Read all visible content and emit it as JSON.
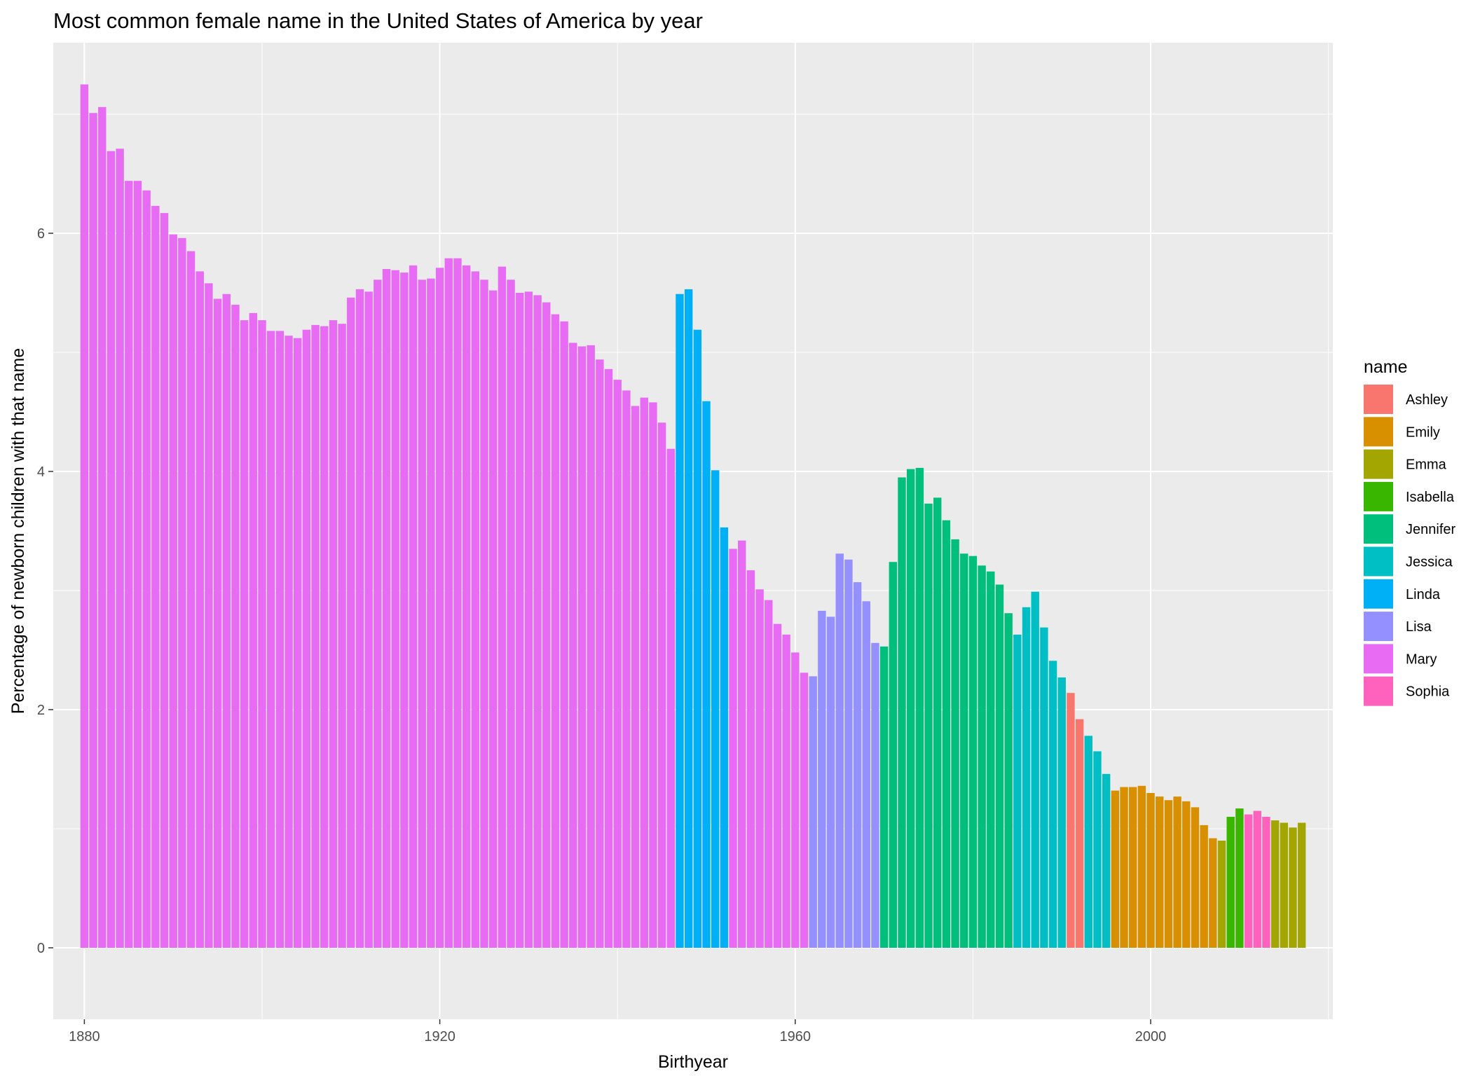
{
  "chart_data": {
    "type": "bar",
    "title": "Most common female name in the United States of America by year",
    "xlabel": "Birthyear",
    "ylabel": "Percentage of newborn children with that name",
    "xlim": [
      1876.5,
      2020.5
    ],
    "ylim": [
      -0.6,
      7.6
    ],
    "x_ticks": [
      1880,
      1920,
      1960,
      2000
    ],
    "y_ticks": [
      0,
      2,
      4,
      6
    ],
    "x_minor_ticks": [
      1900,
      1940,
      1980,
      2020
    ],
    "y_minor_ticks": [
      1,
      3,
      5,
      7
    ],
    "grid": true,
    "legend": {
      "title": "name",
      "position": "right"
    },
    "colors": {
      "Ashley": "#F8766D",
      "Emily": "#D89000",
      "Emma": "#A3A500",
      "Isabella": "#39B600",
      "Jennifer": "#00BF7D",
      "Jessica": "#00BFC4",
      "Linda": "#00B0F6",
      "Lisa": "#9590FF",
      "Mary": "#E76BF3",
      "Sophia": "#FF62BC"
    },
    "series_order": [
      "Ashley",
      "Emily",
      "Emma",
      "Isabella",
      "Jennifer",
      "Jessica",
      "Linda",
      "Lisa",
      "Mary",
      "Sophia"
    ],
    "panel_background": "#EBEBEB",
    "grid_color": "#FFFFFF",
    "bars": [
      {
        "x": 1880,
        "y": 7.25,
        "name": "Mary"
      },
      {
        "x": 1881,
        "y": 7.01,
        "name": "Mary"
      },
      {
        "x": 1882,
        "y": 7.06,
        "name": "Mary"
      },
      {
        "x": 1883,
        "y": 6.69,
        "name": "Mary"
      },
      {
        "x": 1884,
        "y": 6.71,
        "name": "Mary"
      },
      {
        "x": 1885,
        "y": 6.44,
        "name": "Mary"
      },
      {
        "x": 1886,
        "y": 6.44,
        "name": "Mary"
      },
      {
        "x": 1887,
        "y": 6.36,
        "name": "Mary"
      },
      {
        "x": 1888,
        "y": 6.23,
        "name": "Mary"
      },
      {
        "x": 1889,
        "y": 6.17,
        "name": "Mary"
      },
      {
        "x": 1890,
        "y": 5.99,
        "name": "Mary"
      },
      {
        "x": 1891,
        "y": 5.96,
        "name": "Mary"
      },
      {
        "x": 1892,
        "y": 5.85,
        "name": "Mary"
      },
      {
        "x": 1893,
        "y": 5.68,
        "name": "Mary"
      },
      {
        "x": 1894,
        "y": 5.58,
        "name": "Mary"
      },
      {
        "x": 1895,
        "y": 5.45,
        "name": "Mary"
      },
      {
        "x": 1896,
        "y": 5.49,
        "name": "Mary"
      },
      {
        "x": 1897,
        "y": 5.4,
        "name": "Mary"
      },
      {
        "x": 1898,
        "y": 5.27,
        "name": "Mary"
      },
      {
        "x": 1899,
        "y": 5.33,
        "name": "Mary"
      },
      {
        "x": 1900,
        "y": 5.27,
        "name": "Mary"
      },
      {
        "x": 1901,
        "y": 5.18,
        "name": "Mary"
      },
      {
        "x": 1902,
        "y": 5.18,
        "name": "Mary"
      },
      {
        "x": 1903,
        "y": 5.14,
        "name": "Mary"
      },
      {
        "x": 1904,
        "y": 5.12,
        "name": "Mary"
      },
      {
        "x": 1905,
        "y": 5.19,
        "name": "Mary"
      },
      {
        "x": 1906,
        "y": 5.23,
        "name": "Mary"
      },
      {
        "x": 1907,
        "y": 5.22,
        "name": "Mary"
      },
      {
        "x": 1908,
        "y": 5.27,
        "name": "Mary"
      },
      {
        "x": 1909,
        "y": 5.24,
        "name": "Mary"
      },
      {
        "x": 1910,
        "y": 5.46,
        "name": "Mary"
      },
      {
        "x": 1911,
        "y": 5.53,
        "name": "Mary"
      },
      {
        "x": 1912,
        "y": 5.51,
        "name": "Mary"
      },
      {
        "x": 1913,
        "y": 5.61,
        "name": "Mary"
      },
      {
        "x": 1914,
        "y": 5.7,
        "name": "Mary"
      },
      {
        "x": 1915,
        "y": 5.69,
        "name": "Mary"
      },
      {
        "x": 1916,
        "y": 5.67,
        "name": "Mary"
      },
      {
        "x": 1917,
        "y": 5.73,
        "name": "Mary"
      },
      {
        "x": 1918,
        "y": 5.61,
        "name": "Mary"
      },
      {
        "x": 1919,
        "y": 5.62,
        "name": "Mary"
      },
      {
        "x": 1920,
        "y": 5.71,
        "name": "Mary"
      },
      {
        "x": 1921,
        "y": 5.79,
        "name": "Mary"
      },
      {
        "x": 1922,
        "y": 5.79,
        "name": "Mary"
      },
      {
        "x": 1923,
        "y": 5.73,
        "name": "Mary"
      },
      {
        "x": 1924,
        "y": 5.68,
        "name": "Mary"
      },
      {
        "x": 1925,
        "y": 5.61,
        "name": "Mary"
      },
      {
        "x": 1926,
        "y": 5.52,
        "name": "Mary"
      },
      {
        "x": 1927,
        "y": 5.72,
        "name": "Mary"
      },
      {
        "x": 1928,
        "y": 5.61,
        "name": "Mary"
      },
      {
        "x": 1929,
        "y": 5.5,
        "name": "Mary"
      },
      {
        "x": 1930,
        "y": 5.51,
        "name": "Mary"
      },
      {
        "x": 1931,
        "y": 5.48,
        "name": "Mary"
      },
      {
        "x": 1932,
        "y": 5.42,
        "name": "Mary"
      },
      {
        "x": 1933,
        "y": 5.32,
        "name": "Mary"
      },
      {
        "x": 1934,
        "y": 5.26,
        "name": "Mary"
      },
      {
        "x": 1935,
        "y": 5.08,
        "name": "Mary"
      },
      {
        "x": 1936,
        "y": 5.05,
        "name": "Mary"
      },
      {
        "x": 1937,
        "y": 5.06,
        "name": "Mary"
      },
      {
        "x": 1938,
        "y": 4.94,
        "name": "Mary"
      },
      {
        "x": 1939,
        "y": 4.86,
        "name": "Mary"
      },
      {
        "x": 1940,
        "y": 4.77,
        "name": "Mary"
      },
      {
        "x": 1941,
        "y": 4.68,
        "name": "Mary"
      },
      {
        "x": 1942,
        "y": 4.55,
        "name": "Mary"
      },
      {
        "x": 1943,
        "y": 4.62,
        "name": "Mary"
      },
      {
        "x": 1944,
        "y": 4.58,
        "name": "Mary"
      },
      {
        "x": 1945,
        "y": 4.41,
        "name": "Mary"
      },
      {
        "x": 1946,
        "y": 4.19,
        "name": "Mary"
      },
      {
        "x": 1947,
        "y": 5.49,
        "name": "Linda"
      },
      {
        "x": 1948,
        "y": 5.53,
        "name": "Linda"
      },
      {
        "x": 1949,
        "y": 5.19,
        "name": "Linda"
      },
      {
        "x": 1950,
        "y": 4.59,
        "name": "Linda"
      },
      {
        "x": 1951,
        "y": 4.01,
        "name": "Linda"
      },
      {
        "x": 1952,
        "y": 3.53,
        "name": "Linda"
      },
      {
        "x": 1953,
        "y": 3.35,
        "name": "Mary"
      },
      {
        "x": 1954,
        "y": 3.42,
        "name": "Mary"
      },
      {
        "x": 1955,
        "y": 3.17,
        "name": "Mary"
      },
      {
        "x": 1956,
        "y": 3.01,
        "name": "Mary"
      },
      {
        "x": 1957,
        "y": 2.92,
        "name": "Mary"
      },
      {
        "x": 1958,
        "y": 2.72,
        "name": "Mary"
      },
      {
        "x": 1959,
        "y": 2.63,
        "name": "Mary"
      },
      {
        "x": 1960,
        "y": 2.48,
        "name": "Mary"
      },
      {
        "x": 1961,
        "y": 2.31,
        "name": "Mary"
      },
      {
        "x": 1962,
        "y": 2.28,
        "name": "Lisa"
      },
      {
        "x": 1963,
        "y": 2.83,
        "name": "Lisa"
      },
      {
        "x": 1964,
        "y": 2.78,
        "name": "Lisa"
      },
      {
        "x": 1965,
        "y": 3.31,
        "name": "Lisa"
      },
      {
        "x": 1966,
        "y": 3.26,
        "name": "Lisa"
      },
      {
        "x": 1967,
        "y": 3.07,
        "name": "Lisa"
      },
      {
        "x": 1968,
        "y": 2.91,
        "name": "Lisa"
      },
      {
        "x": 1969,
        "y": 2.56,
        "name": "Lisa"
      },
      {
        "x": 1970,
        "y": 2.53,
        "name": "Jennifer"
      },
      {
        "x": 1971,
        "y": 3.24,
        "name": "Jennifer"
      },
      {
        "x": 1972,
        "y": 3.95,
        "name": "Jennifer"
      },
      {
        "x": 1973,
        "y": 4.02,
        "name": "Jennifer"
      },
      {
        "x": 1974,
        "y": 4.03,
        "name": "Jennifer"
      },
      {
        "x": 1975,
        "y": 3.73,
        "name": "Jennifer"
      },
      {
        "x": 1976,
        "y": 3.78,
        "name": "Jennifer"
      },
      {
        "x": 1977,
        "y": 3.59,
        "name": "Jennifer"
      },
      {
        "x": 1978,
        "y": 3.43,
        "name": "Jennifer"
      },
      {
        "x": 1979,
        "y": 3.31,
        "name": "Jennifer"
      },
      {
        "x": 1980,
        "y": 3.29,
        "name": "Jennifer"
      },
      {
        "x": 1981,
        "y": 3.21,
        "name": "Jennifer"
      },
      {
        "x": 1982,
        "y": 3.16,
        "name": "Jennifer"
      },
      {
        "x": 1983,
        "y": 3.05,
        "name": "Jennifer"
      },
      {
        "x": 1984,
        "y": 2.81,
        "name": "Jennifer"
      },
      {
        "x": 1985,
        "y": 2.63,
        "name": "Jessica"
      },
      {
        "x": 1986,
        "y": 2.86,
        "name": "Jessica"
      },
      {
        "x": 1987,
        "y": 2.99,
        "name": "Jessica"
      },
      {
        "x": 1988,
        "y": 2.69,
        "name": "Jessica"
      },
      {
        "x": 1989,
        "y": 2.41,
        "name": "Jessica"
      },
      {
        "x": 1990,
        "y": 2.27,
        "name": "Jessica"
      },
      {
        "x": 1991,
        "y": 2.14,
        "name": "Ashley"
      },
      {
        "x": 1992,
        "y": 1.92,
        "name": "Ashley"
      },
      {
        "x": 1993,
        "y": 1.78,
        "name": "Jessica"
      },
      {
        "x": 1994,
        "y": 1.65,
        "name": "Jessica"
      },
      {
        "x": 1995,
        "y": 1.46,
        "name": "Jessica"
      },
      {
        "x": 1996,
        "y": 1.32,
        "name": "Emily"
      },
      {
        "x": 1997,
        "y": 1.35,
        "name": "Emily"
      },
      {
        "x": 1998,
        "y": 1.35,
        "name": "Emily"
      },
      {
        "x": 1999,
        "y": 1.36,
        "name": "Emily"
      },
      {
        "x": 2000,
        "y": 1.3,
        "name": "Emily"
      },
      {
        "x": 2001,
        "y": 1.27,
        "name": "Emily"
      },
      {
        "x": 2002,
        "y": 1.24,
        "name": "Emily"
      },
      {
        "x": 2003,
        "y": 1.27,
        "name": "Emily"
      },
      {
        "x": 2004,
        "y": 1.23,
        "name": "Emily"
      },
      {
        "x": 2005,
        "y": 1.18,
        "name": "Emily"
      },
      {
        "x": 2006,
        "y": 1.03,
        "name": "Emily"
      },
      {
        "x": 2007,
        "y": 0.92,
        "name": "Emily"
      },
      {
        "x": 2008,
        "y": 0.9,
        "name": "Emma"
      },
      {
        "x": 2009,
        "y": 1.1,
        "name": "Isabella"
      },
      {
        "x": 2010,
        "y": 1.17,
        "name": "Isabella"
      },
      {
        "x": 2011,
        "y": 1.12,
        "name": "Sophia"
      },
      {
        "x": 2012,
        "y": 1.15,
        "name": "Sophia"
      },
      {
        "x": 2013,
        "y": 1.1,
        "name": "Sophia"
      },
      {
        "x": 2014,
        "y": 1.07,
        "name": "Emma"
      },
      {
        "x": 2015,
        "y": 1.05,
        "name": "Emma"
      },
      {
        "x": 2016,
        "y": 1.01,
        "name": "Emma"
      },
      {
        "x": 2017,
        "y": 1.05,
        "name": "Emma"
      }
    ]
  }
}
